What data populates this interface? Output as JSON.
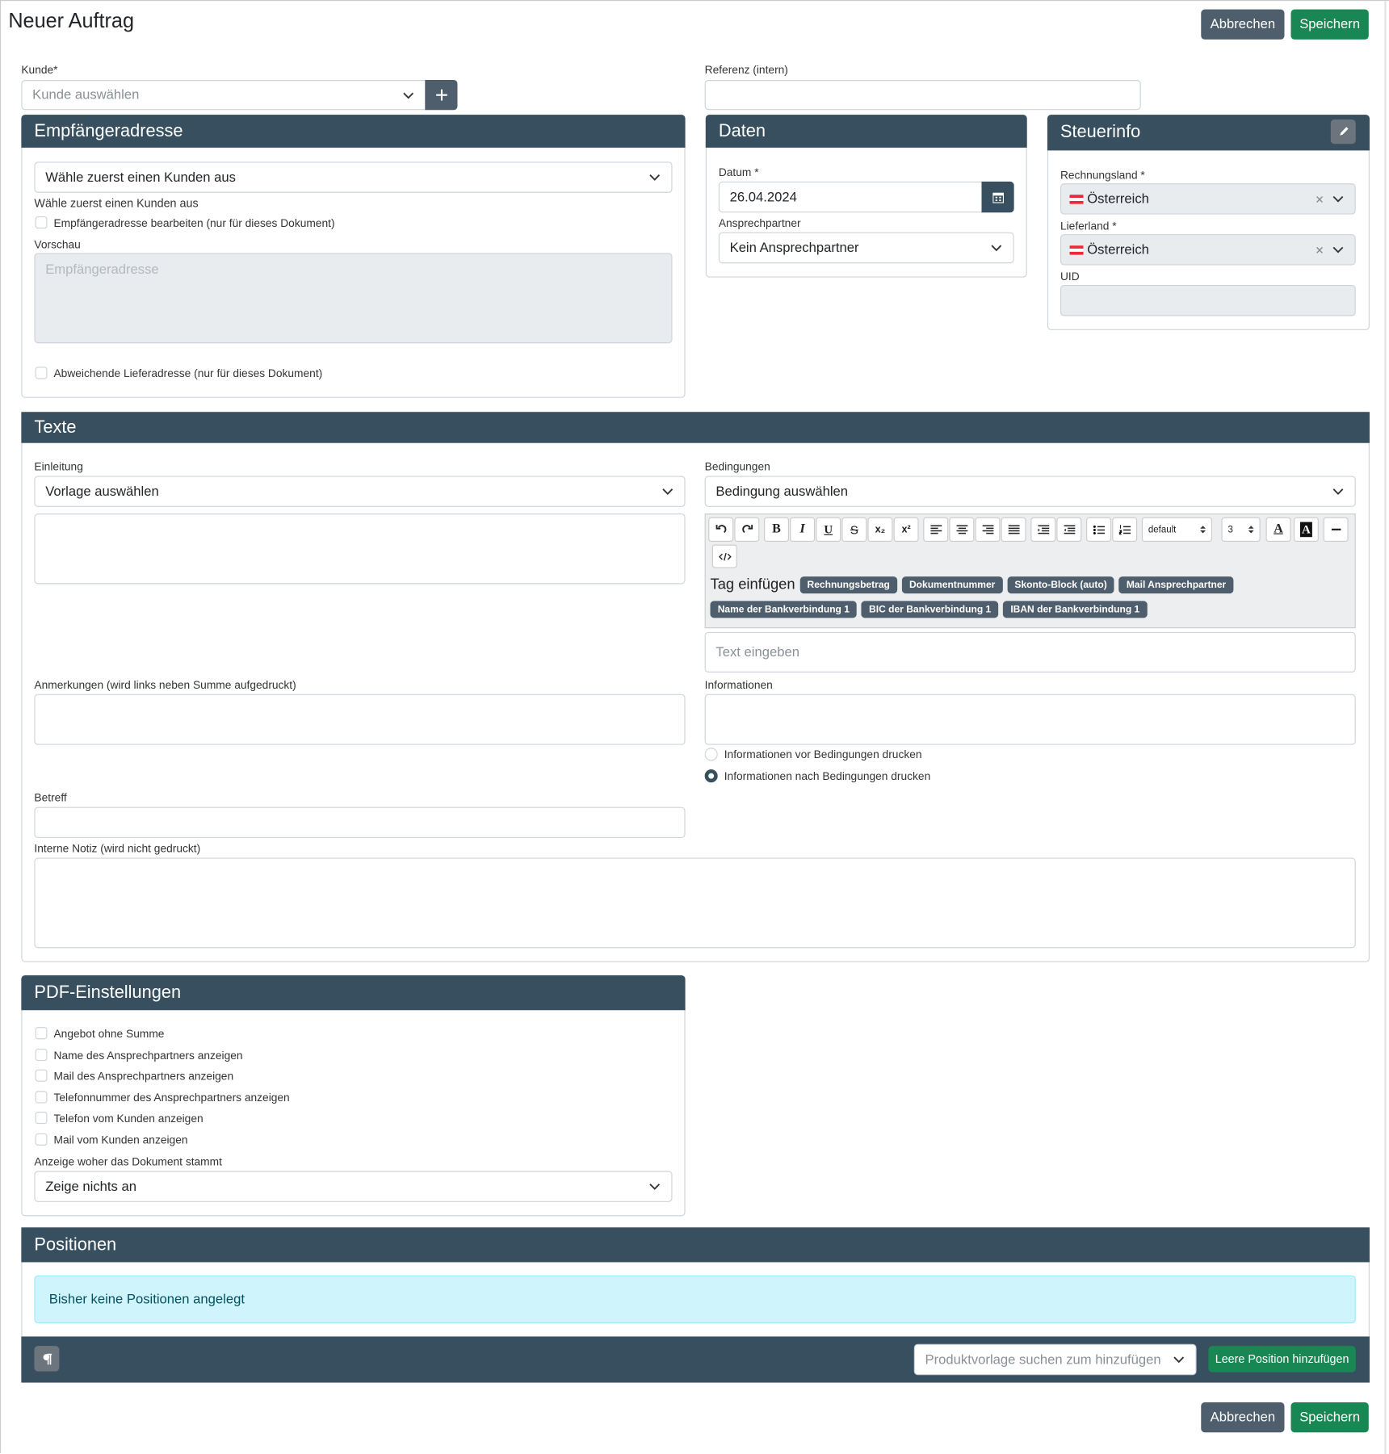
{
  "header": {
    "title": "Neuer Auftrag",
    "cancel": "Abbrechen",
    "save": "Speichern"
  },
  "kunde": {
    "label": "Kunde*",
    "placeholder": "Kunde auswählen"
  },
  "referenz": {
    "label": "Referenz (intern)"
  },
  "empfaenger": {
    "title": "Empfängeradresse",
    "select": "Wähle zuerst einen Kunden aus",
    "hint": "Wähle zuerst einen Kunden aus",
    "edit_checkbox": "Empfängeradresse bearbeiten (nur für dieses Dokument)",
    "preview_label": "Vorschau",
    "preview_placeholder": "Empfängeradresse",
    "alt_delivery": "Abweichende Lieferadresse (nur für dieses Dokument)"
  },
  "daten": {
    "title": "Daten",
    "date_label": "Datum *",
    "date": "26.04.2024",
    "contact_label": "Ansprechpartner",
    "contact": "Kein Ansprechpartner"
  },
  "steuerinfo": {
    "title": "Steuerinfo",
    "billing_label": "Rechnungsland *",
    "billing": "Österreich",
    "delivery_label": "Lieferland *",
    "delivery": "Österreich",
    "uid_label": "UID"
  },
  "texte": {
    "title": "Texte",
    "intro_label": "Einleitung",
    "intro_select": "Vorlage auswählen",
    "conditions_label": "Bedingungen",
    "conditions_select": "Bedingung auswählen",
    "editor": {
      "format_buttons": [
        "B",
        "I",
        "U",
        "S",
        "x₂",
        "x²"
      ],
      "font": "default",
      "size": "3",
      "color_buttons": [
        "A",
        "A"
      ],
      "tag_label": "Tag einfügen",
      "tags": [
        "Rechnungsbetrag",
        "Dokumentnummer",
        "Skonto-Block (auto)",
        "Mail Ansprechpartner",
        "Name der Bankverbindung 1",
        "BIC der Bankverbindung 1",
        "IBAN der Bankverbindung 1"
      ]
    },
    "text_placeholder": "Text eingeben",
    "remarks_label": "Anmerkungen (wird links neben Summe aufgedruckt)",
    "info_label": "Informationen",
    "radio": [
      "Informationen vor Bedingungen drucken",
      "Informationen nach Bedingungen drucken"
    ],
    "subject_label": "Betreff",
    "note_label": "Interne Notiz (wird nicht gedruckt)"
  },
  "pdf": {
    "title": "PDF-Einstellungen",
    "options": [
      "Angebot ohne Summe",
      "Name des Ansprechpartners anzeigen",
      "Mail des Ansprechpartners anzeigen",
      "Telefonnummer des Ansprechpartners anzeigen",
      "Telefon vom Kunden anzeigen",
      "Mail vom Kunden anzeigen"
    ],
    "origin_label": "Anzeige woher das Dokument stammt",
    "origin": "Zeige nichts an"
  },
  "positionen": {
    "title": "Positionen",
    "empty": "Bisher keine Positionen angelegt",
    "search_placeholder": "Produktvorlage suchen zum hinzufügen",
    "add_empty": "Leere Position hinzufügen"
  },
  "footer": {
    "cancel": "Abbrechen",
    "save": "Speichern"
  }
}
